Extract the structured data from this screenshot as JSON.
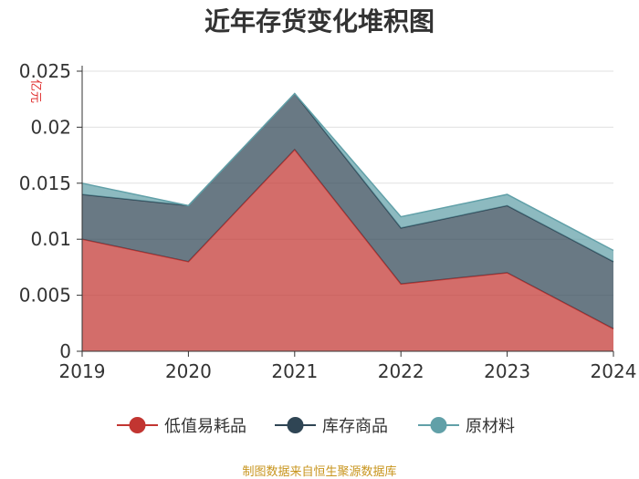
{
  "chart_data": {
    "type": "area",
    "stacked": true,
    "title": "近年存货变化堆积图",
    "unit_label": "亿元",
    "source": "制图数据来自恒生聚源数据库",
    "categories": [
      "2019",
      "2020",
      "2021",
      "2022",
      "2023",
      "2024"
    ],
    "ylim": [
      0,
      0.025
    ],
    "y_ticks": [
      "0",
      "0.005",
      "0.01",
      "0.015",
      "0.02",
      "0.025"
    ],
    "grid": true,
    "legend_position": "bottom",
    "series": [
      {
        "name": "低值易耗品",
        "color": "#c23531",
        "values": [
          0.01,
          0.008,
          0.018,
          0.006,
          0.007,
          0.002
        ]
      },
      {
        "name": "库存商品",
        "color": "#2f4554",
        "values": [
          0.004,
          0.005,
          0.005,
          0.005,
          0.006,
          0.006
        ]
      },
      {
        "name": "原材料",
        "color": "#61a0a8",
        "values": [
          0.001,
          0.0,
          0.0,
          0.001,
          0.001,
          0.001
        ]
      }
    ]
  }
}
